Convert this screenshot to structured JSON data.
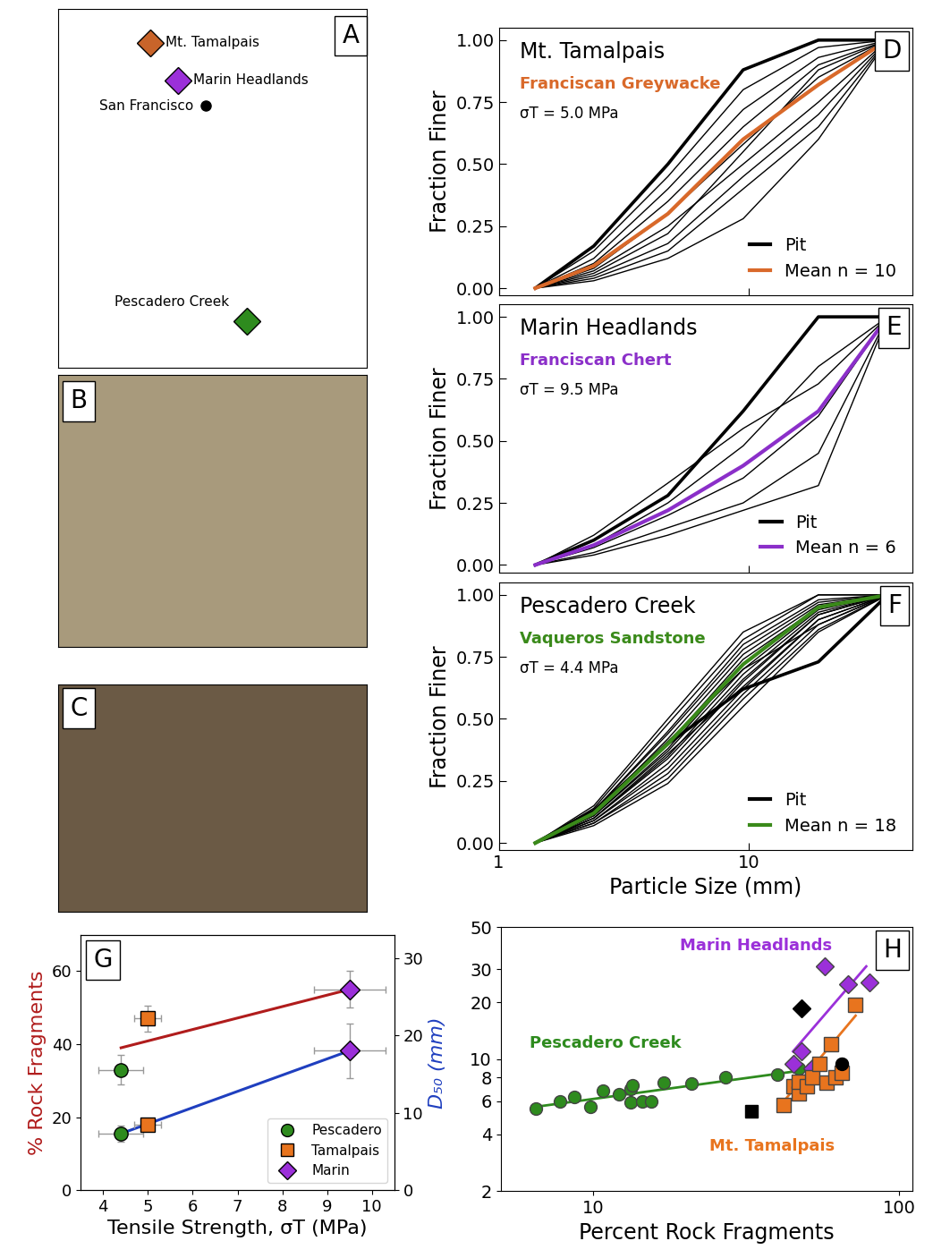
{
  "chart_data": [
    {
      "type": "map",
      "panel": "A",
      "xlim": [
        -122.85,
        -121.95
      ],
      "ylim": [
        37.15,
        38.0
      ],
      "tick_labels": false,
      "points": [
        {
          "name": "Mt. Tamalpais",
          "x": -122.58,
          "y": 37.92,
          "color": "#c8642a",
          "marker": "diamond"
        },
        {
          "name": "Marin Headlands",
          "x": -122.5,
          "y": 37.83,
          "color": "#9b30d9",
          "marker": "diamond"
        },
        {
          "name": "San Francisco",
          "x": -122.42,
          "y": 37.77,
          "color": "#000000",
          "marker": "circle"
        },
        {
          "name": "Pescadero Creek",
          "x": -122.3,
          "y": 37.26,
          "color": "#2e8b1e",
          "marker": "diamond"
        }
      ]
    },
    {
      "type": "image",
      "panel": "B",
      "color": "#a89a7c"
    },
    {
      "type": "image",
      "panel": "C",
      "color": "#6b5a45"
    },
    {
      "type": "line",
      "panel": "D",
      "title": "Mt. Tamalpais",
      "subtitle": "Franciscan Greywacke",
      "annotation": "σT = 5.0 MPa",
      "ylabel": "Fraction Finer",
      "log": "x",
      "xlim": [
        1,
        45
      ],
      "ylim": [
        -0.03,
        1.05
      ],
      "xticks": [
        1,
        10
      ],
      "yticks": [
        {
          "value": 0,
          "label": "0.00"
        },
        {
          "value": 0.25,
          "label": "0.25"
        },
        {
          "value": 0.5,
          "label": "0.50"
        },
        {
          "value": 0.75,
          "label": "0.75"
        },
        {
          "value": 1,
          "label": "1.00"
        }
      ],
      "tick_labels": "y",
      "legend": "lower right",
      "x": [
        1.4,
        2.4,
        4.75,
        9.5,
        19,
        36
      ],
      "series": [
        {
          "name": "Pit",
          "color": "#000000",
          "values": [
            0,
            0.17,
            0.5,
            0.88,
            1.0,
            1.0
          ]
        },
        {
          "name": "Pit",
          "color": "#000000",
          "values": [
            0,
            0.15,
            0.45,
            0.8,
            0.97,
            1.0
          ]
        },
        {
          "name": "Pit",
          "color": "#000000",
          "values": [
            0,
            0.12,
            0.4,
            0.72,
            0.93,
            1.0
          ]
        },
        {
          "name": "Pit",
          "color": "#000000",
          "values": [
            0,
            0.1,
            0.35,
            0.65,
            0.9,
            1.0
          ]
        },
        {
          "name": "Pit",
          "color": "#000000",
          "values": [
            0,
            0.08,
            0.3,
            0.58,
            0.85,
            1.0
          ]
        },
        {
          "name": "Pit",
          "color": "#000000",
          "values": [
            0,
            0.07,
            0.25,
            0.5,
            0.75,
            1.0
          ]
        },
        {
          "name": "Pit",
          "color": "#000000",
          "values": [
            0,
            0.06,
            0.22,
            0.55,
            0.88,
            1.0
          ]
        },
        {
          "name": "Pit",
          "color": "#000000",
          "values": [
            0,
            0.05,
            0.18,
            0.45,
            0.7,
            1.0
          ]
        },
        {
          "name": "Pit",
          "color": "#000000",
          "values": [
            0,
            0.03,
            0.12,
            0.28,
            0.6,
            1.0
          ]
        },
        {
          "name": "Pit",
          "color": "#000000",
          "values": [
            0,
            0.04,
            0.15,
            0.4,
            0.65,
            1.0
          ]
        },
        {
          "name": "Mean n = 10",
          "color": "#d9692a",
          "values": [
            0,
            0.09,
            0.3,
            0.6,
            0.82,
            1.0
          ]
        }
      ]
    },
    {
      "type": "line",
      "panel": "E",
      "title": "Marin Headlands",
      "subtitle": "Franciscan Chert",
      "annotation": "σT = 9.5 MPa",
      "ylabel": "Fraction Finer",
      "log": "x",
      "xlim": [
        1,
        45
      ],
      "ylim": [
        -0.03,
        1.05
      ],
      "xticks": [
        1,
        10
      ],
      "yticks": [
        {
          "value": 0,
          "label": "0.00"
        },
        {
          "value": 0.25,
          "label": "0.25"
        },
        {
          "value": 0.5,
          "label": "0.50"
        },
        {
          "value": 0.75,
          "label": "0.75"
        },
        {
          "value": 1,
          "label": "1.00"
        }
      ],
      "tick_labels": "y",
      "legend": "lower right",
      "x": [
        1.4,
        2.4,
        4.75,
        9.5,
        19,
        36
      ],
      "series": [
        {
          "name": "Pit",
          "color": "#000000",
          "values": [
            0,
            0.1,
            0.28,
            0.62,
            1.0,
            1.0
          ]
        },
        {
          "name": "Pit",
          "color": "#000000",
          "values": [
            0,
            0.12,
            0.33,
            0.55,
            0.73,
            1.0
          ]
        },
        {
          "name": "Pit",
          "color": "#000000",
          "values": [
            0,
            0.08,
            0.25,
            0.48,
            0.8,
            1.0
          ]
        },
        {
          "name": "Pit",
          "color": "#000000",
          "values": [
            0,
            0.07,
            0.2,
            0.35,
            0.6,
            1.0
          ]
        },
        {
          "name": "Pit",
          "color": "#000000",
          "values": [
            0,
            0.05,
            0.15,
            0.25,
            0.45,
            1.0
          ]
        },
        {
          "name": "Pit",
          "color": "#000000",
          "values": [
            0,
            0.04,
            0.12,
            0.22,
            0.32,
            1.0
          ]
        },
        {
          "name": "Mean n = 6",
          "color": "#8b2fc9",
          "values": [
            0,
            0.08,
            0.22,
            0.4,
            0.62,
            1.0
          ]
        }
      ]
    },
    {
      "type": "line",
      "panel": "F",
      "title": "Pescadero Creek",
      "subtitle": "Vaqueros Sandstone",
      "annotation": "σT = 4.4 MPa",
      "ylabel": "Fraction Finer",
      "xlabel": "Particle Size (mm)",
      "log": "x",
      "xlim": [
        1,
        45
      ],
      "ylim": [
        -0.03,
        1.05
      ],
      "xticks": [
        1,
        10
      ],
      "yticks": [
        {
          "value": 0,
          "label": "0.00"
        },
        {
          "value": 0.25,
          "label": "0.25"
        },
        {
          "value": 0.5,
          "label": "0.50"
        },
        {
          "value": 0.75,
          "label": "0.75"
        },
        {
          "value": 1,
          "label": "1.00"
        }
      ],
      "legend": "lower right",
      "x": [
        1.4,
        2.4,
        4.75,
        9.5,
        19,
        36
      ],
      "series": [
        {
          "name": "Pit",
          "color": "#000000",
          "values": [
            0,
            0.13,
            0.4,
            0.62,
            0.73,
            1.0
          ]
        },
        {
          "name": "Pit",
          "color": "#000000",
          "values": [
            0,
            0.15,
            0.5,
            0.85,
            1.0,
            1.0
          ]
        },
        {
          "name": "Pit",
          "color": "#000000",
          "values": [
            0,
            0.14,
            0.48,
            0.82,
            1.0,
            1.0
          ]
        },
        {
          "name": "Pit",
          "color": "#000000",
          "values": [
            0,
            0.13,
            0.45,
            0.8,
            0.98,
            1.0
          ]
        },
        {
          "name": "Pit",
          "color": "#000000",
          "values": [
            0,
            0.13,
            0.44,
            0.78,
            0.97,
            1.0
          ]
        },
        {
          "name": "Pit",
          "color": "#000000",
          "values": [
            0,
            0.12,
            0.42,
            0.76,
            0.96,
            1.0
          ]
        },
        {
          "name": "Pit",
          "color": "#000000",
          "values": [
            0,
            0.12,
            0.4,
            0.74,
            0.95,
            1.0
          ]
        },
        {
          "name": "Pit",
          "color": "#000000",
          "values": [
            0,
            0.11,
            0.38,
            0.72,
            0.95,
            1.0
          ]
        },
        {
          "name": "Pit",
          "color": "#000000",
          "values": [
            0,
            0.11,
            0.37,
            0.7,
            0.94,
            1.0
          ]
        },
        {
          "name": "Pit",
          "color": "#000000",
          "values": [
            0,
            0.1,
            0.35,
            0.68,
            0.93,
            1.0
          ]
        },
        {
          "name": "Pit",
          "color": "#000000",
          "values": [
            0,
            0.1,
            0.34,
            0.66,
            0.92,
            1.0
          ]
        },
        {
          "name": "Pit",
          "color": "#000000",
          "values": [
            0,
            0.09,
            0.32,
            0.65,
            0.92,
            1.0
          ]
        },
        {
          "name": "Pit",
          "color": "#000000",
          "values": [
            0,
            0.09,
            0.3,
            0.62,
            0.9,
            1.0
          ]
        },
        {
          "name": "Pit",
          "color": "#000000",
          "values": [
            0,
            0.08,
            0.28,
            0.6,
            0.88,
            1.0
          ]
        },
        {
          "name": "Pit",
          "color": "#000000",
          "values": [
            0,
            0.08,
            0.26,
            0.58,
            0.86,
            1.0
          ]
        },
        {
          "name": "Pit",
          "color": "#000000",
          "values": [
            0,
            0.07,
            0.24,
            0.55,
            0.85,
            1.0
          ]
        },
        {
          "name": "Pit",
          "color": "#000000",
          "values": [
            0,
            0.1,
            0.36,
            0.63,
            0.9,
            1.0
          ]
        },
        {
          "name": "Pit",
          "color": "#000000",
          "values": [
            0,
            0.12,
            0.41,
            0.7,
            0.88,
            1.0
          ]
        },
        {
          "name": "Mean n = 18",
          "color": "#3a8a1a",
          "values": [
            0,
            0.12,
            0.4,
            0.72,
            0.95,
            1.0
          ]
        }
      ]
    },
    {
      "type": "scatter",
      "panel": "G",
      "xlabel": "Tensile Strength, σT (MPa)",
      "ylabel": "% Rock Fragments",
      "y2label": "D₅₀ (mm)",
      "xlim": [
        3.5,
        10.5
      ],
      "xticks": [
        4,
        5,
        6,
        7,
        8,
        9,
        10
      ],
      "ylim": [
        0,
        70
      ],
      "yticks": [
        0,
        20,
        40,
        60
      ],
      "y2lim": [
        0,
        33
      ],
      "y2ticks": [
        0,
        10,
        20,
        30
      ],
      "legend": "lower right",
      "series": [
        {
          "name": "Pescadero",
          "color": "#2e8b1e",
          "marker": "circle",
          "x": [
            4.4
          ],
          "x_error": [
            0.5
          ],
          "values": [
            33
          ],
          "error": [
            4
          ],
          "y2_values": [
            7.3
          ],
          "y2_error": [
            1.0
          ]
        },
        {
          "name": "Tamalpais",
          "color": "#e8741e",
          "marker": "square",
          "x": [
            5.0
          ],
          "x_error": [
            0.3
          ],
          "values": [
            47
          ],
          "error": [
            3.5
          ],
          "y2_values": [
            8.5
          ],
          "y2_error": [
            0.8
          ]
        },
        {
          "name": "Marin",
          "color": "#9b30d9",
          "marker": "diamond",
          "x": [
            9.5
          ],
          "x_error": [
            0.8
          ],
          "values": [
            55
          ],
          "error": [
            5
          ],
          "y2_values": [
            18
          ],
          "y2_error": [
            3.5
          ]
        }
      ],
      "fits": [
        {
          "color": "#b01c1c",
          "x": [
            4.4,
            9.5
          ],
          "values": [
            39,
            55
          ]
        },
        {
          "color": "#1f3fbf",
          "axis": "y2",
          "x": [
            4.4,
            9.5
          ],
          "values": [
            7.3,
            18
          ]
        }
      ]
    },
    {
      "type": "scatter",
      "panel": "H",
      "xlabel": "Percent Rock Fragments",
      "log": true,
      "xlim": [
        5,
        110
      ],
      "ylim": [
        2,
        50
      ],
      "xticks": [
        10,
        100
      ],
      "yticks": [
        2,
        4,
        6,
        8,
        10,
        20,
        30,
        50
      ],
      "series": [
        {
          "name": "Pescadero Creek",
          "color": "#2e8b1e",
          "marker": "circle",
          "x": [
            6.5,
            7.8,
            8.7,
            9.8,
            10.8,
            12.2,
            13.3,
            13.5,
            13.3,
            14.5,
            15.5,
            17,
            21,
            27,
            40,
            47,
            52,
            65
          ],
          "values": [
            5.5,
            6,
            6.3,
            5.6,
            6.8,
            6.5,
            7,
            7.3,
            5.9,
            6,
            6,
            7.5,
            7.4,
            8,
            8.3,
            9,
            9,
            9.5
          ],
          "fit": {
            "x": [
              6.5,
              50
            ],
            "values": [
              5.6,
              8.8
            ]
          }
        },
        {
          "name": "Marin Headlands",
          "color": "#9b30d9",
          "marker": "diamond",
          "x": [
            45,
            48,
            52,
            57,
            68,
            80
          ],
          "values": [
            9.5,
            11,
            9,
            31,
            25,
            25.5
          ],
          "fit": {
            "x": [
              45,
              78
            ],
            "values": [
              11,
              31
            ]
          }
        },
        {
          "name": "Mt. Tamalpais",
          "color": "#e8741e",
          "marker": "square",
          "x": [
            42,
            45,
            47,
            47,
            50,
            52,
            55,
            58,
            60,
            62,
            65,
            72
          ],
          "values": [
            5.7,
            7.2,
            6.6,
            7.6,
            7.2,
            8,
            9.5,
            7.5,
            12,
            8,
            8.5,
            19.5
          ],
          "fit": {
            "x": [
              42,
              72
            ],
            "values": [
              6,
              17
            ]
          }
        }
      ],
      "points": [
        {
          "color": "#000000",
          "marker": "diamond",
          "x": [
            48
          ],
          "values": [
            18.5
          ]
        },
        {
          "color": "#000000",
          "marker": "square",
          "x": [
            33
          ],
          "values": [
            5.3
          ]
        },
        {
          "color": "#000000",
          "marker": "circle",
          "x": [
            65
          ],
          "values": [
            9.5
          ]
        }
      ]
    }
  ]
}
